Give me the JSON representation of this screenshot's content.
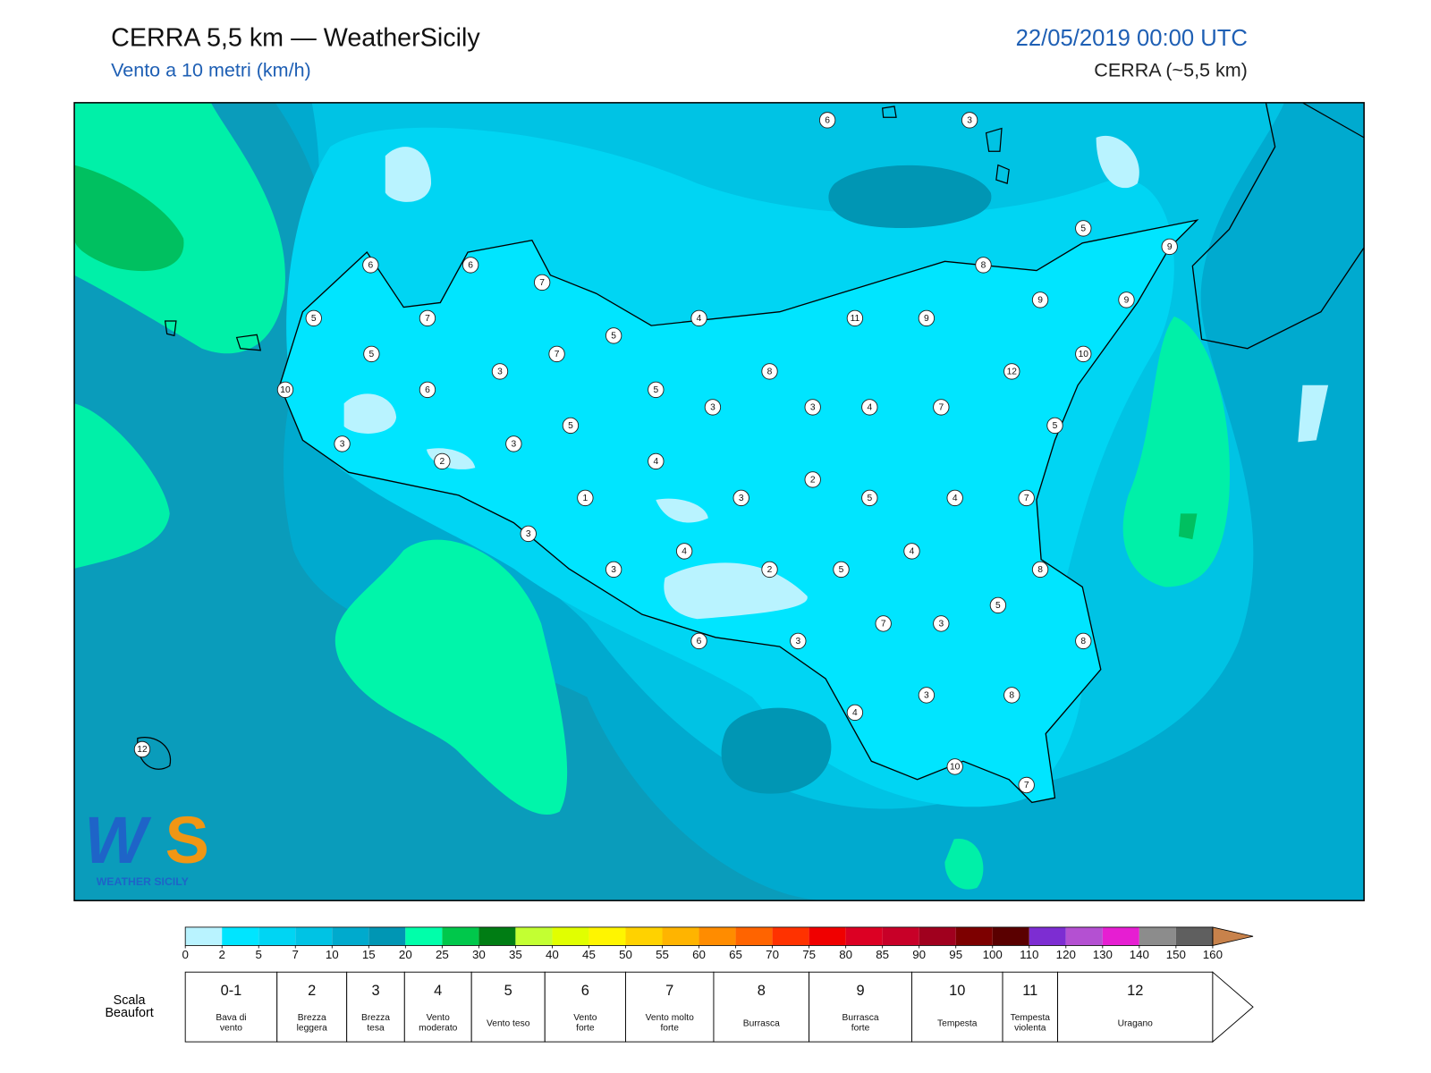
{
  "header": {
    "title": "CERRA 5,5 km — WeatherSicily",
    "subtitle": "Vento a 10 metri (km/h)",
    "datetime": "22/05/2019 00:00 UTC",
    "model": "CERRA (~5,5 km)"
  },
  "map": {
    "stations": [
      6,
      3,
      5,
      9,
      6,
      6,
      7,
      8,
      5,
      7,
      4,
      11,
      9,
      9,
      9,
      5,
      5,
      7,
      10,
      3,
      8,
      12,
      10,
      6,
      5,
      3,
      3,
      4,
      7,
      5,
      5,
      3,
      3,
      2,
      4,
      2,
      1,
      3,
      5,
      4,
      7,
      3,
      4,
      4,
      3,
      2,
      5,
      8,
      5,
      7,
      3,
      6,
      3,
      8,
      3,
      8,
      4,
      12,
      10,
      7
    ]
  },
  "logo": {
    "letters": [
      "W",
      "S"
    ],
    "name": "WEATHER SICILY"
  },
  "colorbar": {
    "ticks": [
      0,
      2,
      5,
      7,
      10,
      15,
      20,
      25,
      30,
      35,
      40,
      45,
      50,
      55,
      60,
      65,
      70,
      75,
      80,
      85,
      90,
      95,
      100,
      110,
      120,
      130,
      140,
      150,
      160
    ],
    "colors": [
      "#b9f3ff",
      "#00e5ff",
      "#00d5f3",
      "#00c3e4",
      "#00aacd",
      "#0096b4",
      "#00ffaa",
      "#00c84b",
      "#007d14",
      "#c3ff32",
      "#e1ff00",
      "#fff500",
      "#ffd200",
      "#ffb400",
      "#ff8c00",
      "#ff6400",
      "#ff3200",
      "#f00000",
      "#dc0023",
      "#c80028",
      "#a0001e",
      "#7d0000",
      "#5a0000",
      "#7d2dd2",
      "#b450d2",
      "#e61ed2",
      "#8c8c8c",
      "#5f5f5f",
      "#000000",
      "#7d4123",
      "#c8824b"
    ]
  },
  "beaufort": {
    "label": [
      "Scala",
      "Beaufort"
    ],
    "levels": [
      {
        "force": "0-1",
        "desc": [
          "Bava di",
          "vento"
        ]
      },
      {
        "force": 2,
        "desc": [
          "Brezza",
          "leggera"
        ]
      },
      {
        "force": 3,
        "desc": [
          "Brezza",
          "tesa"
        ]
      },
      {
        "force": 4,
        "desc": [
          "Vento",
          "moderato"
        ]
      },
      {
        "force": 5,
        "desc": [
          "Vento teso"
        ]
      },
      {
        "force": 6,
        "desc": [
          "Vento",
          "forte"
        ]
      },
      {
        "force": 7,
        "desc": [
          "Vento molto",
          "forte"
        ]
      },
      {
        "force": 8,
        "desc": [
          "Burrasca"
        ]
      },
      {
        "force": 9,
        "desc": [
          "Burrasca",
          "forte"
        ]
      },
      {
        "force": 10,
        "desc": [
          "Tempesta"
        ]
      },
      {
        "force": 11,
        "desc": [
          "Tempesta",
          "violenta"
        ]
      },
      {
        "force": 12,
        "desc": [
          "Uragano"
        ]
      }
    ]
  }
}
